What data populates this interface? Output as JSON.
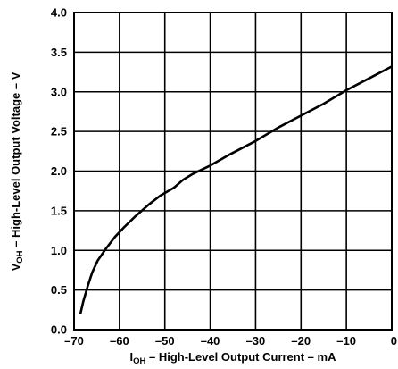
{
  "chart_data": {
    "type": "line",
    "title": "",
    "xlabel": {
      "main": "I",
      "sub": "OH",
      "rest": " – High-Level Output Current – mA"
    },
    "ylabel": {
      "main": "V",
      "sub": "OH",
      "rest": " – High-Level Output Voltage – V"
    },
    "xlim": [
      -70,
      0
    ],
    "ylim": [
      0.0,
      4.0
    ],
    "xticks": [
      -70,
      -60,
      -50,
      -40,
      -30,
      -20,
      -10,
      0
    ],
    "xtick_labels": [
      "–70",
      "–60",
      "–50",
      "–40",
      "–30",
      "–20",
      "–10",
      "0"
    ],
    "yticks": [
      0.0,
      0.5,
      1.0,
      1.5,
      2.0,
      2.5,
      3.0,
      3.5,
      4.0
    ],
    "ytick_labels": [
      "0.0",
      "0.5",
      "1.0",
      "1.5",
      "2.0",
      "2.5",
      "3.0",
      "3.5",
      "4.0"
    ],
    "grid": true,
    "series": [
      {
        "x": [
          -68.6,
          -68.0,
          -67.0,
          -66.0,
          -64.8,
          -63.0,
          -61.0,
          -59.0,
          -56.5,
          -53.5,
          -51.0,
          -48.0,
          -46.0,
          -44.0,
          -40.0,
          -36.0,
          -30.0,
          -25.0,
          -20.0,
          -15.0,
          -10.0,
          -5.0,
          0.0
        ],
        "y": [
          0.2,
          0.35,
          0.55,
          0.72,
          0.87,
          1.02,
          1.17,
          1.29,
          1.43,
          1.58,
          1.69,
          1.79,
          1.89,
          1.96,
          2.07,
          2.2,
          2.38,
          2.55,
          2.7,
          2.85,
          3.02,
          3.17,
          3.32
        ],
        "color": "#000000"
      }
    ]
  }
}
